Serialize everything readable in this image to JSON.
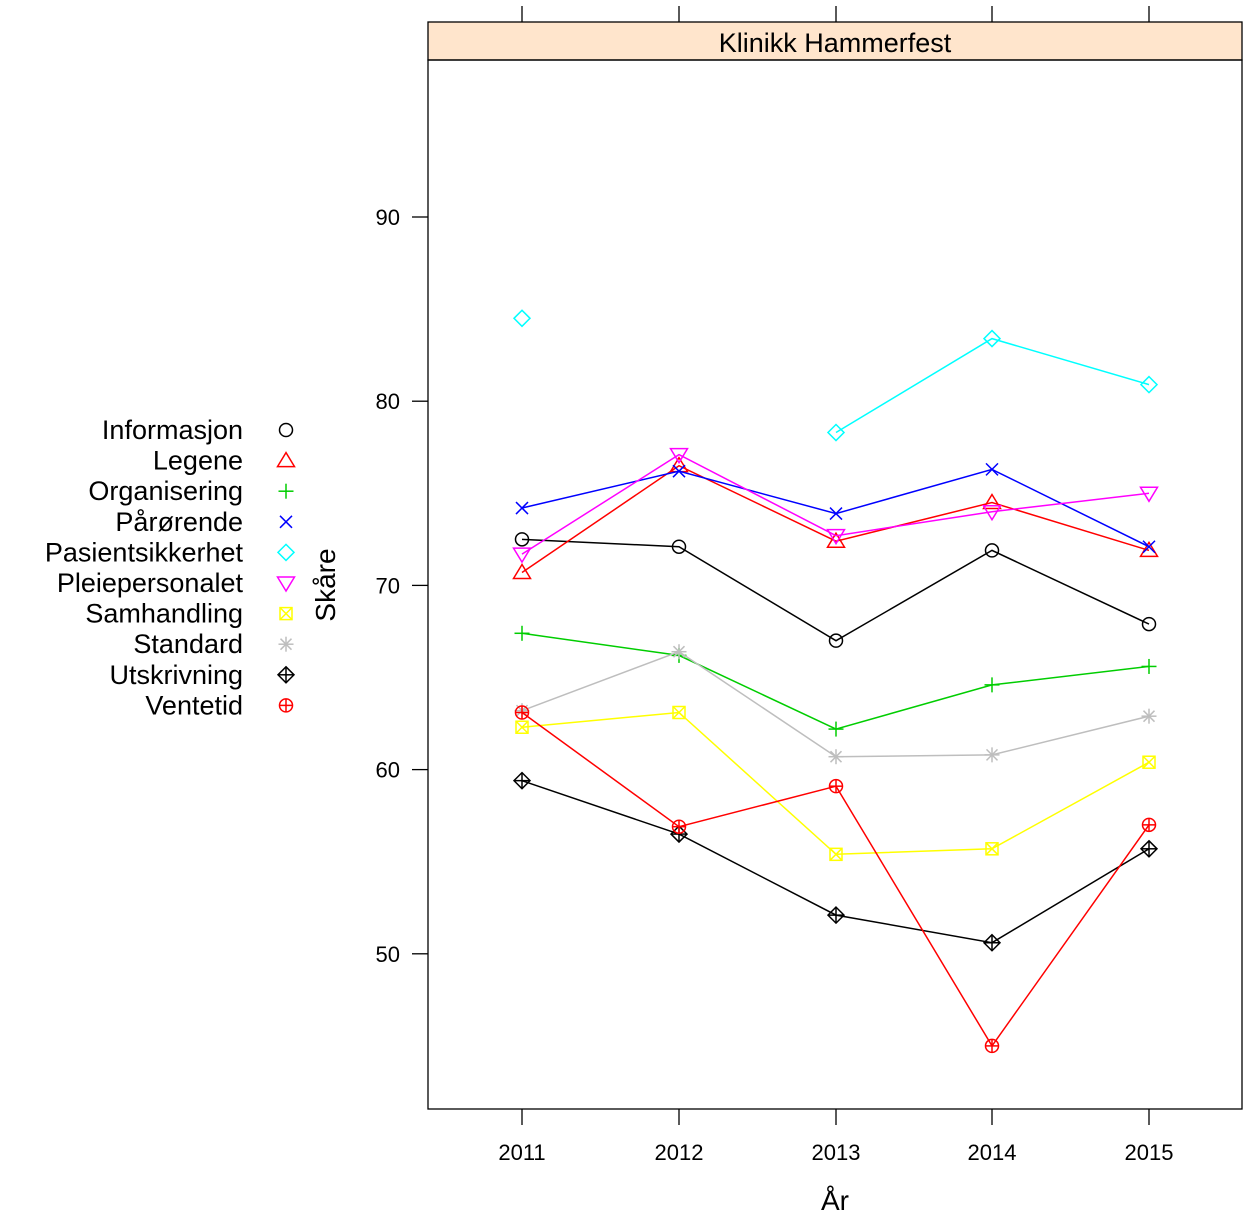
{
  "chart_data": {
    "type": "line",
    "title": "Klinikk Hammerfest",
    "xlabel": "År",
    "ylabel": "Skåre",
    "x": [
      "2011",
      "2012",
      "2013",
      "2014",
      "2015"
    ],
    "ylim": [
      42.5,
      98.5
    ],
    "yticks": [
      50,
      60,
      70,
      80,
      90
    ],
    "grid": false,
    "legend_position": "left",
    "strip_color": "#ffe5cc",
    "series": [
      {
        "name": "Informasjon",
        "color": "#000000",
        "marker": "circle",
        "values": [
          72.5,
          72.1,
          67.0,
          71.9,
          67.9
        ]
      },
      {
        "name": "Legene",
        "color": "#ff0000",
        "marker": "triangle",
        "values": [
          70.7,
          76.5,
          72.4,
          74.5,
          71.9
        ]
      },
      {
        "name": "Organisering",
        "color": "#00cd00",
        "marker": "plus",
        "values": [
          67.4,
          66.2,
          62.2,
          64.6,
          65.6
        ]
      },
      {
        "name": "Pårørende",
        "color": "#0000ff",
        "marker": "cross",
        "values": [
          74.2,
          76.2,
          73.9,
          76.3,
          72.1
        ]
      },
      {
        "name": "Pasientsikkerhet",
        "color": "#00ffff",
        "marker": "diamond",
        "values": [
          84.5,
          null,
          78.3,
          83.4,
          80.9
        ]
      },
      {
        "name": "Pleiepersonalet",
        "color": "#ff00ff",
        "marker": "triangle-down",
        "values": [
          71.7,
          77.1,
          72.7,
          74.0,
          75.0
        ]
      },
      {
        "name": "Samhandling",
        "color": "#ffff00",
        "marker": "square-x",
        "values": [
          62.3,
          63.1,
          55.4,
          55.7,
          60.4
        ]
      },
      {
        "name": "Standard",
        "color": "#bebebe",
        "marker": "asterisk",
        "values": [
          63.2,
          66.4,
          60.7,
          60.8,
          62.9
        ]
      },
      {
        "name": "Utskrivning",
        "color": "#000000",
        "marker": "diamond-plus",
        "values": [
          59.4,
          56.5,
          52.1,
          50.6,
          55.7
        ]
      },
      {
        "name": "Ventetid",
        "color": "#ff0000",
        "marker": "circle-plus",
        "values": [
          63.1,
          56.9,
          59.1,
          45.0,
          57.0
        ]
      }
    ]
  }
}
